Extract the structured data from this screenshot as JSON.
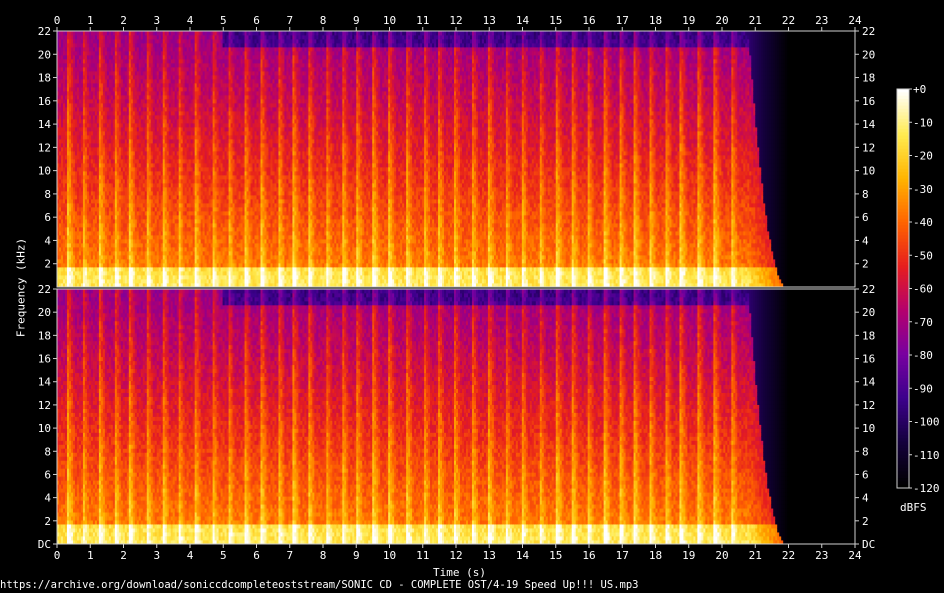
{
  "chart_data": {
    "type": "heatmap",
    "subtype": "spectrogram",
    "channels": 2,
    "xlabel": "Time (s)",
    "ylabel": "Frequency (kHz)",
    "x_ticks": [
      "0",
      "1",
      "2",
      "3",
      "4",
      "5",
      "6",
      "7",
      "8",
      "9",
      "10",
      "11",
      "12",
      "13",
      "14",
      "15",
      "16",
      "17",
      "18",
      "19",
      "20",
      "21",
      "22",
      "23",
      "24"
    ],
    "xlim": [
      0,
      24
    ],
    "y_ticks": [
      "DC",
      "2",
      "4",
      "6",
      "8",
      "10",
      "12",
      "14",
      "16",
      "18",
      "20",
      "22"
    ],
    "y_tick_values": [
      0,
      2,
      4,
      6,
      8,
      10,
      12,
      14,
      16,
      18,
      20,
      22
    ],
    "ylim": [
      0,
      22
    ],
    "signal_end_s": 20.8,
    "decay_end_s": 22.0,
    "colorbar": {
      "label": "dBFS",
      "ticks": [
        "+0",
        "-10",
        "-20",
        "-30",
        "-40",
        "-50",
        "-60",
        "-70",
        "-80",
        "-90",
        "-100",
        "-110",
        "-120"
      ],
      "range": [
        -120,
        0
      ],
      "colormap": [
        "#000000",
        "#14003c",
        "#3c008c",
        "#7800a0",
        "#b4006e",
        "#e61e1e",
        "#ff6400",
        "#ffb400",
        "#ffeb50",
        "#ffffff"
      ]
    },
    "footer": "https://archive.org/download/soniccdcompleteoststream/SONIC CD - COMPLETE OST/4-19 Speed Up!!! US.mp3"
  }
}
